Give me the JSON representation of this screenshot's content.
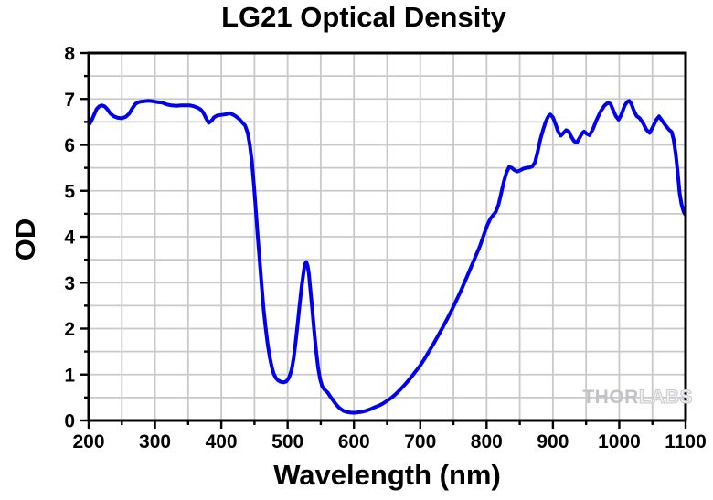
{
  "title": "LG21 Optical Density",
  "watermark": {
    "bold_part": "THOR",
    "light_part": "LABS"
  },
  "colors": {
    "curve": "#0000EE",
    "grid": "#C9C9C9",
    "axis": "#000000",
    "background": "#FFFFFF",
    "watermark_gray": "#C6C6CA"
  },
  "chart_data": {
    "type": "line",
    "title": "LG21 Optical Density",
    "xlabel": "Wavelength (nm)",
    "ylabel": "OD",
    "xlim": [
      200,
      1100
    ],
    "ylim": [
      0,
      8
    ],
    "x_tick_labels": [
      "200",
      "300",
      "400",
      "500",
      "600",
      "700",
      "800",
      "900",
      "1000",
      "1100"
    ],
    "x_tick_values": [
      200,
      300,
      400,
      500,
      600,
      700,
      800,
      900,
      1000,
      1100
    ],
    "y_tick_labels": [
      "0",
      "1",
      "2",
      "3",
      "4",
      "5",
      "6",
      "7",
      "8"
    ],
    "y_tick_values": [
      0,
      1,
      2,
      3,
      4,
      5,
      6,
      7,
      8
    ],
    "x_minor_step": 50,
    "y_minor_step": 0.5,
    "grid": "minor gridlines every 50 nm and 0.5 OD, light gray",
    "legend": "none",
    "series": [
      {
        "name": "LG21 optical density spectrum",
        "points": [
          [
            200,
            6.43
          ],
          [
            204,
            6.52
          ],
          [
            208,
            6.65
          ],
          [
            212,
            6.78
          ],
          [
            216,
            6.84
          ],
          [
            220,
            6.86
          ],
          [
            224,
            6.84
          ],
          [
            228,
            6.78
          ],
          [
            233,
            6.68
          ],
          [
            238,
            6.62
          ],
          [
            244,
            6.59
          ],
          [
            250,
            6.58
          ],
          [
            256,
            6.61
          ],
          [
            261,
            6.68
          ],
          [
            266,
            6.8
          ],
          [
            271,
            6.9
          ],
          [
            277,
            6.94
          ],
          [
            283,
            6.95
          ],
          [
            290,
            6.96
          ],
          [
            297,
            6.95
          ],
          [
            304,
            6.93
          ],
          [
            311,
            6.92
          ],
          [
            318,
            6.88
          ],
          [
            325,
            6.86
          ],
          [
            332,
            6.85
          ],
          [
            339,
            6.86
          ],
          [
            346,
            6.86
          ],
          [
            353,
            6.86
          ],
          [
            359,
            6.84
          ],
          [
            364,
            6.81
          ],
          [
            369,
            6.77
          ],
          [
            373,
            6.7
          ],
          [
            377,
            6.58
          ],
          [
            381,
            6.48
          ],
          [
            385,
            6.52
          ],
          [
            389,
            6.6
          ],
          [
            394,
            6.64
          ],
          [
            399,
            6.65
          ],
          [
            404,
            6.66
          ],
          [
            408,
            6.67
          ],
          [
            412,
            6.69
          ],
          [
            416,
            6.67
          ],
          [
            420,
            6.64
          ],
          [
            424,
            6.6
          ],
          [
            428,
            6.55
          ],
          [
            432,
            6.48
          ],
          [
            436,
            6.42
          ],
          [
            440,
            6.25
          ],
          [
            443,
            6.0
          ],
          [
            446,
            5.65
          ],
          [
            449,
            5.15
          ],
          [
            452,
            4.6
          ],
          [
            455,
            4.0
          ],
          [
            458,
            3.45
          ],
          [
            461,
            2.9
          ],
          [
            464,
            2.4
          ],
          [
            467,
            2.0
          ],
          [
            470,
            1.65
          ],
          [
            473,
            1.38
          ],
          [
            476,
            1.17
          ],
          [
            479,
            1.02
          ],
          [
            482,
            0.93
          ],
          [
            486,
            0.87
          ],
          [
            490,
            0.84
          ],
          [
            494,
            0.83
          ],
          [
            498,
            0.85
          ],
          [
            502,
            0.93
          ],
          [
            506,
            1.1
          ],
          [
            509,
            1.35
          ],
          [
            512,
            1.7
          ],
          [
            515,
            2.1
          ],
          [
            518,
            2.5
          ],
          [
            521,
            2.9
          ],
          [
            524,
            3.22
          ],
          [
            526,
            3.4
          ],
          [
            528,
            3.45
          ],
          [
            530,
            3.38
          ],
          [
            532,
            3.2
          ],
          [
            534,
            2.9
          ],
          [
            537,
            2.45
          ],
          [
            540,
            1.95
          ],
          [
            543,
            1.5
          ],
          [
            546,
            1.15
          ],
          [
            549,
            0.9
          ],
          [
            552,
            0.75
          ],
          [
            555,
            0.68
          ],
          [
            558,
            0.64
          ],
          [
            561,
            0.6
          ],
          [
            564,
            0.53
          ],
          [
            568,
            0.45
          ],
          [
            572,
            0.37
          ],
          [
            576,
            0.3
          ],
          [
            580,
            0.25
          ],
          [
            584,
            0.21
          ],
          [
            588,
            0.19
          ],
          [
            592,
            0.18
          ],
          [
            597,
            0.17
          ],
          [
            602,
            0.17
          ],
          [
            607,
            0.18
          ],
          [
            612,
            0.19
          ],
          [
            618,
            0.21
          ],
          [
            624,
            0.24
          ],
          [
            630,
            0.28
          ],
          [
            637,
            0.32
          ],
          [
            644,
            0.37
          ],
          [
            650,
            0.43
          ],
          [
            657,
            0.5
          ],
          [
            664,
            0.59
          ],
          [
            671,
            0.69
          ],
          [
            678,
            0.8
          ],
          [
            685,
            0.92
          ],
          [
            692,
            1.05
          ],
          [
            699,
            1.18
          ],
          [
            706,
            1.33
          ],
          [
            713,
            1.5
          ],
          [
            720,
            1.67
          ],
          [
            727,
            1.85
          ],
          [
            734,
            2.03
          ],
          [
            741,
            2.22
          ],
          [
            748,
            2.42
          ],
          [
            755,
            2.63
          ],
          [
            762,
            2.85
          ],
          [
            769,
            3.08
          ],
          [
            776,
            3.32
          ],
          [
            783,
            3.56
          ],
          [
            790,
            3.8
          ],
          [
            796,
            4.05
          ],
          [
            801,
            4.25
          ],
          [
            806,
            4.4
          ],
          [
            810,
            4.47
          ],
          [
            814,
            4.55
          ],
          [
            818,
            4.7
          ],
          [
            822,
            4.95
          ],
          [
            826,
            5.2
          ],
          [
            830,
            5.4
          ],
          [
            834,
            5.52
          ],
          [
            838,
            5.5
          ],
          [
            842,
            5.45
          ],
          [
            846,
            5.42
          ],
          [
            850,
            5.44
          ],
          [
            855,
            5.48
          ],
          [
            860,
            5.5
          ],
          [
            865,
            5.51
          ],
          [
            869,
            5.53
          ],
          [
            873,
            5.62
          ],
          [
            877,
            5.85
          ],
          [
            881,
            6.12
          ],
          [
            885,
            6.32
          ],
          [
            889,
            6.5
          ],
          [
            893,
            6.62
          ],
          [
            896,
            6.66
          ],
          [
            900,
            6.6
          ],
          [
            904,
            6.45
          ],
          [
            908,
            6.28
          ],
          [
            912,
            6.2
          ],
          [
            916,
            6.26
          ],
          [
            920,
            6.32
          ],
          [
            924,
            6.29
          ],
          [
            928,
            6.17
          ],
          [
            932,
            6.08
          ],
          [
            936,
            6.05
          ],
          [
            940,
            6.15
          ],
          [
            944,
            6.25
          ],
          [
            947,
            6.29
          ],
          [
            951,
            6.24
          ],
          [
            955,
            6.21
          ],
          [
            960,
            6.33
          ],
          [
            966,
            6.55
          ],
          [
            972,
            6.73
          ],
          [
            978,
            6.86
          ],
          [
            983,
            6.92
          ],
          [
            987,
            6.89
          ],
          [
            991,
            6.75
          ],
          [
            995,
            6.62
          ],
          [
            999,
            6.55
          ],
          [
            1003,
            6.65
          ],
          [
            1008,
            6.85
          ],
          [
            1012,
            6.94
          ],
          [
            1015,
            6.96
          ],
          [
            1018,
            6.9
          ],
          [
            1022,
            6.75
          ],
          [
            1026,
            6.63
          ],
          [
            1031,
            6.58
          ],
          [
            1036,
            6.47
          ],
          [
            1041,
            6.33
          ],
          [
            1046,
            6.26
          ],
          [
            1051,
            6.4
          ],
          [
            1056,
            6.55
          ],
          [
            1060,
            6.62
          ],
          [
            1065,
            6.52
          ],
          [
            1070,
            6.42
          ],
          [
            1075,
            6.33
          ],
          [
            1079,
            6.28
          ],
          [
            1082,
            6.12
          ],
          [
            1085,
            5.82
          ],
          [
            1088,
            5.42
          ],
          [
            1091,
            4.95
          ],
          [
            1094,
            4.7
          ],
          [
            1097,
            4.55
          ],
          [
            1100,
            4.47
          ]
        ]
      }
    ]
  }
}
